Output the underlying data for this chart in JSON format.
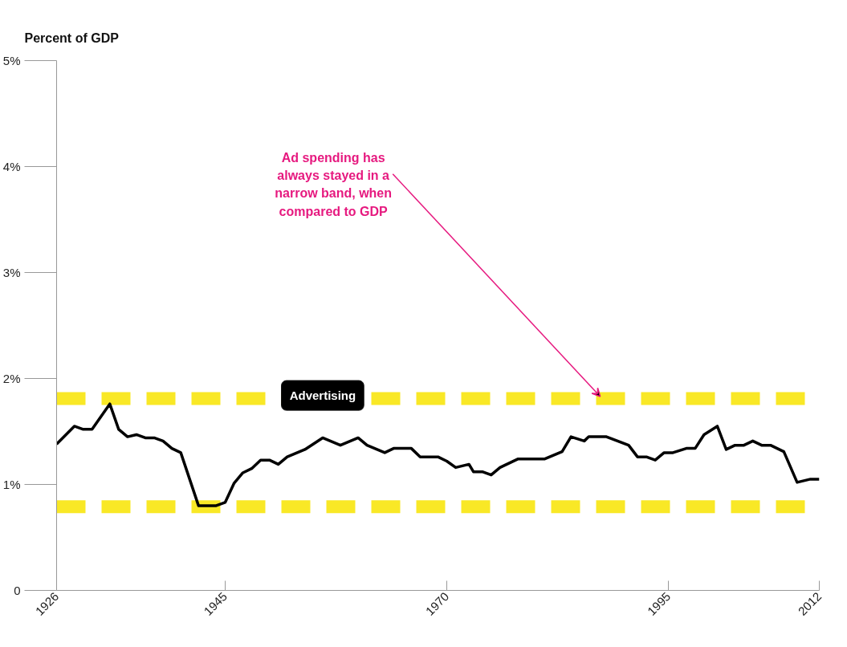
{
  "chart_data": {
    "type": "line",
    "ylabel": "Percent of GDP",
    "x": [
      1926,
      1928,
      1929,
      1930,
      1932,
      1933,
      1934,
      1935,
      1936,
      1937,
      1938,
      1939,
      1940,
      1942,
      1944,
      1945,
      1946,
      1947,
      1948,
      1949,
      1950,
      1951,
      1952,
      1954,
      1956,
      1958,
      1960,
      1961,
      1963,
      1964,
      1966,
      1967,
      1968,
      1969,
      1970,
      1971,
      1972.5,
      1973,
      1974,
      1975,
      1976,
      1978,
      1981,
      1983,
      1984,
      1985.5,
      1986,
      1988,
      1990.5,
      1991.5,
      1992.5,
      1993.5,
      1994.5,
      1995.5,
      1997,
      1998,
      1999,
      2000.5,
      2001.5,
      2002.5,
      2003.5,
      2004.5,
      2005.5,
      2006.5,
      2008,
      2009.5,
      2011,
      2012
    ],
    "series": [
      {
        "name": "Advertising",
        "color": "#000000",
        "values": [
          1.38,
          1.55,
          1.52,
          1.52,
          1.76,
          1.52,
          1.45,
          1.47,
          1.44,
          1.44,
          1.41,
          1.34,
          1.3,
          0.8,
          0.8,
          0.83,
          1.01,
          1.11,
          1.15,
          1.23,
          1.23,
          1.19,
          1.26,
          1.33,
          1.44,
          1.37,
          1.44,
          1.37,
          1.3,
          1.34,
          1.34,
          1.26,
          1.26,
          1.26,
          1.22,
          1.16,
          1.19,
          1.12,
          1.12,
          1.09,
          1.16,
          1.24,
          1.24,
          1.31,
          1.45,
          1.41,
          1.45,
          1.45,
          1.37,
          1.26,
          1.26,
          1.23,
          1.3,
          1.3,
          1.34,
          1.34,
          1.47,
          1.55,
          1.33,
          1.37,
          1.37,
          1.41,
          1.37,
          1.37,
          1.31,
          1.02,
          1.05,
          1.05
        ]
      }
    ],
    "xlim": [
      1926,
      2012
    ],
    "xticks": [
      1926,
      1945,
      1970,
      1995,
      2012
    ],
    "ylim": [
      0,
      5
    ],
    "yticks": [
      {
        "value": 0,
        "label": "0"
      },
      {
        "value": 1,
        "label": "1%"
      },
      {
        "value": 2,
        "label": "2%"
      },
      {
        "value": 3,
        "label": "3%"
      },
      {
        "value": 4,
        "label": "4%"
      },
      {
        "value": 5,
        "label": "5%"
      }
    ],
    "ref_lines": [
      {
        "axis": "y",
        "value": 1.81,
        "color": "#f9e826",
        "line_style": "dashed"
      },
      {
        "axis": "y",
        "value": 0.79,
        "color": "#f9e826",
        "line_style": "dashed"
      }
    ],
    "annotations": [
      {
        "text": "Ad spending has\nalways stayed in a\nnarrow band, when\ncompared to GDP",
        "x": 1987.3,
        "y": 1.83
      }
    ],
    "grid": false,
    "legend": false,
    "marker": "none",
    "line_style": "solid"
  }
}
